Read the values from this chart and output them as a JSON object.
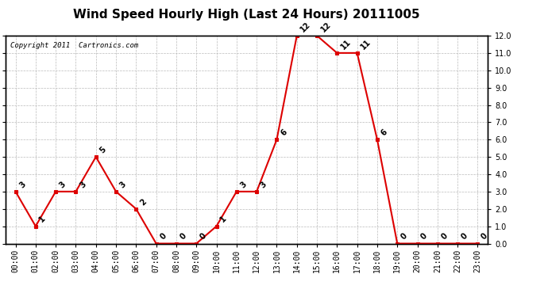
{
  "title": "Wind Speed Hourly High (Last 24 Hours) 20111005",
  "copyright": "Copyright 2011  Cartronics.com",
  "hours": [
    "00:00",
    "01:00",
    "02:00",
    "03:00",
    "04:00",
    "05:00",
    "06:00",
    "07:00",
    "08:00",
    "09:00",
    "10:00",
    "11:00",
    "12:00",
    "13:00",
    "14:00",
    "15:00",
    "16:00",
    "17:00",
    "18:00",
    "19:00",
    "20:00",
    "21:00",
    "22:00",
    "23:00"
  ],
  "data_points": [
    3,
    1,
    3,
    3,
    5,
    3,
    2,
    0,
    0,
    0,
    1,
    3,
    3,
    6,
    12,
    12,
    11,
    11,
    6,
    0,
    0,
    0,
    0,
    0
  ],
  "ylim": [
    0.0,
    12.0
  ],
  "yticks": [
    0.0,
    1.0,
    2.0,
    3.0,
    4.0,
    5.0,
    6.0,
    7.0,
    8.0,
    9.0,
    10.0,
    11.0,
    12.0
  ],
  "line_color": "#dd0000",
  "marker_color": "#dd0000",
  "bg_color": "#ffffff",
  "grid_color": "#bbbbbb",
  "title_fontsize": 11,
  "annot_fontsize": 7,
  "tick_fontsize": 7,
  "copyright_fontsize": 6.5
}
